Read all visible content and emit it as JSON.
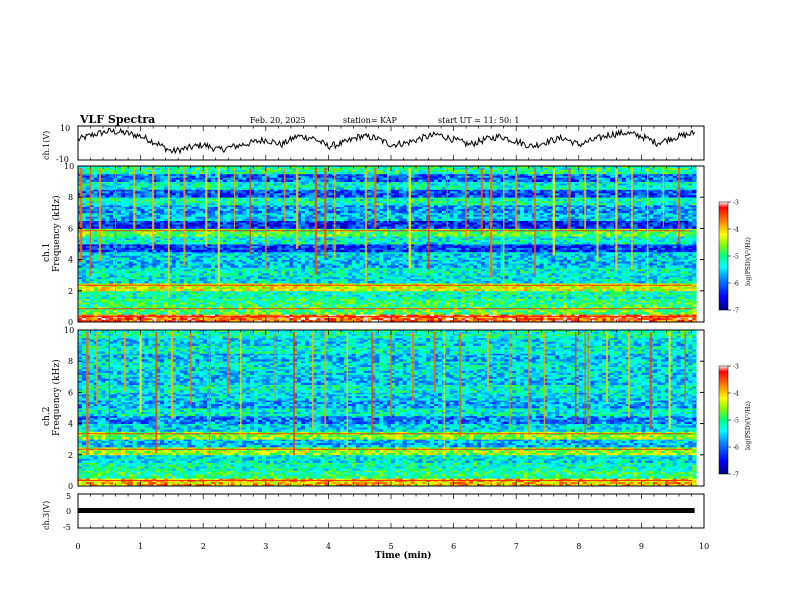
{
  "header": {
    "title": "VLF Spectra",
    "date": "Feb. 20, 2025",
    "station": "station= KAP",
    "start": "start  UT  =   11: 50: 1"
  },
  "colors": {
    "scale": [
      "#000080",
      "#0000ff",
      "#0080ff",
      "#00ffff",
      "#00ff80",
      "#80ff00",
      "#ffff00",
      "#ff8000",
      "#ff0000",
      "#ffffff"
    ],
    "trace": "#000000"
  },
  "chart_data": [
    {
      "type": "line",
      "name": "ch1-voltage",
      "ylabel": "ch.1(V)",
      "ylim": [
        -10,
        10
      ],
      "yticks": [
        "10",
        "-10"
      ],
      "xlim": [
        0,
        10
      ],
      "x": [
        0,
        0.25,
        0.5,
        0.75,
        1.0,
        1.25,
        1.5,
        1.75,
        2.0,
        2.25,
        2.5,
        2.75,
        3.0,
        3.25,
        3.5,
        3.75,
        4.0,
        4.25,
        4.5,
        4.75,
        5.0,
        5.25,
        5.5,
        5.75,
        6.0,
        6.25,
        6.5,
        6.75,
        7.0,
        7.25,
        7.5,
        7.75,
        8.0,
        8.25,
        8.5,
        8.75,
        9.0,
        9.25,
        9.5,
        9.75,
        9.85
      ],
      "y": [
        2,
        5,
        7,
        6,
        4,
        0,
        -5,
        -3,
        -1,
        -4,
        -2,
        0,
        2,
        -1,
        4,
        3,
        -2,
        0,
        4,
        3,
        -1,
        0,
        3,
        5,
        2,
        -1,
        2,
        4,
        1,
        -2,
        1,
        3,
        -1,
        2,
        5,
        6,
        4,
        0,
        3,
        5,
        6
      ]
    },
    {
      "type": "heatmap",
      "name": "ch1-spectrogram",
      "ylabel": "ch.1",
      "ylabel2": "Frequency (kHz)",
      "ylim": [
        0,
        10
      ],
      "yticks": [
        "0",
        "2",
        "4",
        "6",
        "8",
        "10"
      ],
      "xlim": [
        0,
        10
      ],
      "colorbar": {
        "label": "log(PSD)(V²/Hz)",
        "range": [
          -7,
          -3
        ],
        "ticks": [
          "-3",
          "-4",
          "-5",
          "-6",
          "-7"
        ]
      },
      "freq_band_kHz": [
        0,
        0.5,
        1.0,
        1.5,
        2.0,
        2.5,
        3.0,
        3.5,
        4.0,
        4.5,
        5.0,
        5.5,
        6.0,
        6.5,
        7.0,
        7.5,
        8.0,
        8.5,
        9.0,
        9.5
      ],
      "band_log_psd": [
        -3.5,
        -4.8,
        -5.0,
        -5.2,
        -4.3,
        -5.4,
        -5.3,
        -5.6,
        -5.5,
        -6.2,
        -5.3,
        -4.8,
        -6.3,
        -5.6,
        -5.8,
        -5.2,
        -6.1,
        -5.3,
        -6.0,
        -5.1
      ],
      "spike_times_min": [
        0.05,
        0.2,
        0.35,
        0.6,
        0.9,
        1.2,
        1.45,
        1.7,
        2.05,
        2.25,
        2.5,
        2.75,
        3.0,
        3.3,
        3.5,
        3.8,
        3.95,
        4.1,
        4.6,
        4.75,
        4.95,
        5.3,
        5.6,
        5.9,
        6.2,
        6.45,
        6.6,
        6.8,
        7.0,
        7.3,
        7.6,
        7.85,
        8.1,
        8.3,
        8.6,
        8.85,
        9.1,
        9.35,
        9.6
      ]
    },
    {
      "type": "heatmap",
      "name": "ch2-spectrogram",
      "ylabel": "ch.2",
      "ylabel2": "Frequency (kHz)",
      "ylim": [
        0,
        10
      ],
      "yticks": [
        "0",
        "2",
        "4",
        "6",
        "8",
        "10"
      ],
      "xlim": [
        0,
        10
      ],
      "colorbar": {
        "label": "log(PSD)(V²/Hz)",
        "range": [
          -7,
          -3
        ],
        "ticks": [
          "-3",
          "-4",
          "-5",
          "-6",
          "-7"
        ]
      },
      "freq_band_kHz": [
        0,
        0.5,
        1.0,
        1.5,
        2.0,
        2.5,
        3.0,
        3.5,
        4.0,
        4.5,
        5.0,
        5.5,
        6.0,
        6.5,
        7.0,
        7.5,
        8.0,
        8.5,
        9.0,
        9.5
      ],
      "band_log_psd": [
        -4.0,
        -5.0,
        -5.2,
        -5.4,
        -4.5,
        -5.6,
        -4.6,
        -5.5,
        -5.9,
        -5.3,
        -5.7,
        -5.5,
        -5.3,
        -5.6,
        -5.5,
        -5.4,
        -5.6,
        -5.3,
        -5.5,
        -5.2
      ],
      "spike_times_min": [
        0.15,
        0.3,
        0.5,
        0.75,
        1.0,
        1.25,
        1.5,
        1.8,
        2.1,
        2.4,
        2.6,
        3.15,
        3.45,
        3.75,
        3.95,
        4.3,
        4.7,
        5.0,
        5.35,
        5.7,
        5.85,
        6.1,
        6.55,
        6.9,
        7.2,
        7.45,
        7.95,
        8.1,
        8.15,
        8.45,
        8.8,
        9.15,
        9.45,
        9.7
      ]
    },
    {
      "type": "line",
      "name": "ch3-voltage",
      "ylabel": "ch.3(V)",
      "ylim": [
        -5,
        5
      ],
      "yticks": [
        "5",
        "0",
        "-5"
      ],
      "xlim": [
        0,
        10
      ],
      "x": [
        0,
        9.85
      ],
      "y": [
        0,
        0
      ]
    }
  ],
  "xaxis": {
    "label": "Time  (min)",
    "ticks": [
      "0",
      "1",
      "2",
      "3",
      "4",
      "5",
      "6",
      "7",
      "8",
      "9",
      "10"
    ]
  }
}
